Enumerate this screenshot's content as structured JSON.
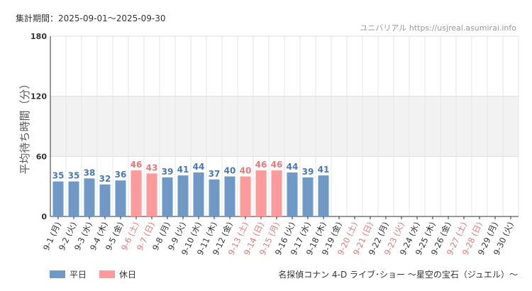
{
  "header": {
    "period_label": "集計期間：2025-09-01〜2025-09-30",
    "site": "ユニバリアル https://usjreal.asumirai.info"
  },
  "footer": {
    "attraction": "名探偵コナン 4-D ライブ･ショー 〜星空の宝石（ジュエル）〜"
  },
  "legend": [
    {
      "name": "平日",
      "color": "#6f9ac8"
    },
    {
      "name": "休日",
      "color": "#ff9a9a"
    }
  ],
  "chart_data": {
    "type": "bar",
    "ylabel": "平均待ち時間（分）",
    "ylim": [
      0,
      180
    ],
    "yticks": [
      0,
      60,
      120,
      180
    ],
    "shaded_band": [
      60,
      120
    ],
    "grid": true,
    "legend_position": "bottom-left",
    "colors": {
      "weekday": "#6f9ac8",
      "holiday": "#ff9a9a",
      "weekday_label": "#4a78b5",
      "holiday_label": "#e87878"
    },
    "categories": [
      "9-1 (月)",
      "9-2 (火)",
      "9-3 (水)",
      "9-4 (木)",
      "9-5 (金)",
      "9-6 (土)",
      "9-7 (日)",
      "9-8 (月)",
      "9-9 (火)",
      "9-10 (水)",
      "9-11 (木)",
      "9-12 (金)",
      "9-13 (土)",
      "9-14 (日)",
      "9-15 (月)",
      "9-16 (火)",
      "9-17 (水)",
      "9-18 (木)",
      "9-19 (金)",
      "9-20 (土)",
      "9-21 (日)",
      "9-22 (月)",
      "9-23 (火)",
      "9-24 (水)",
      "9-25 (木)",
      "9-26 (金)",
      "9-27 (土)",
      "9-28 (日)",
      "9-29 (月)",
      "9-30 (火)"
    ],
    "values": [
      35,
      35,
      38,
      32,
      36,
      46,
      43,
      39,
      41,
      44,
      37,
      40,
      40,
      46,
      46,
      44,
      39,
      41,
      null,
      null,
      null,
      null,
      null,
      null,
      null,
      null,
      null,
      null,
      null,
      null
    ],
    "holiday": [
      false,
      false,
      false,
      false,
      false,
      true,
      true,
      false,
      false,
      false,
      false,
      false,
      true,
      true,
      true,
      false,
      false,
      false,
      false,
      true,
      true,
      false,
      true,
      false,
      false,
      false,
      true,
      true,
      false,
      false
    ]
  }
}
